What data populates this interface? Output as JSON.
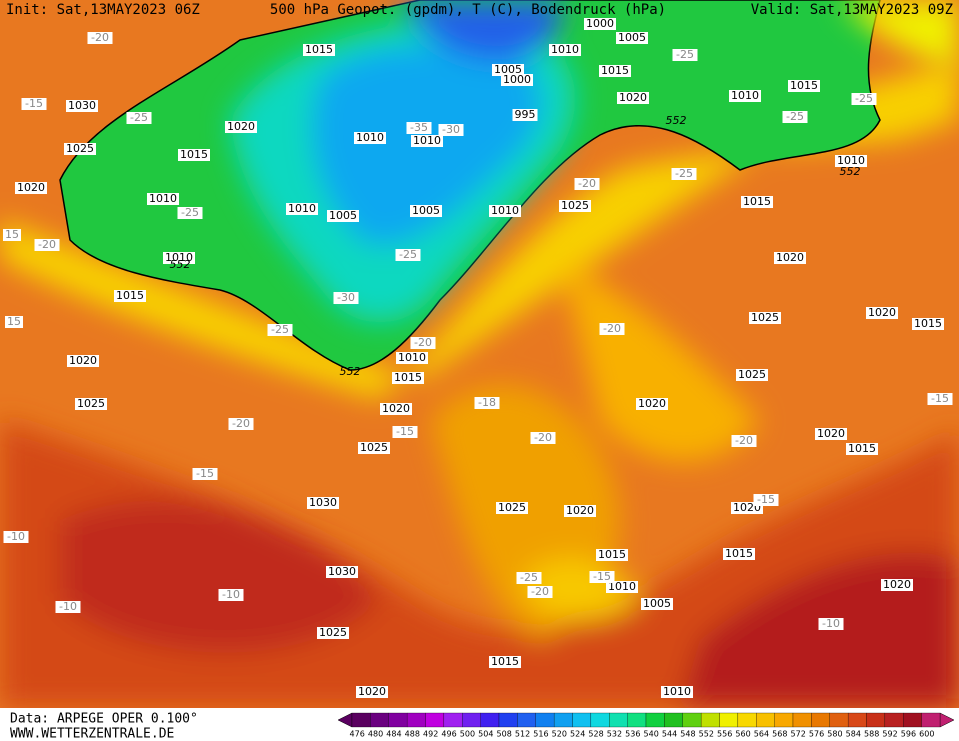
{
  "header": {
    "init": "Init: Sat,13MAY2023 06Z",
    "title": "500 hPa Geopot. (gpdm), T (C), Bodendruck (hPa)",
    "valid": "Valid: Sat,13MAY2023 09Z"
  },
  "footer": {
    "source": "Data: ARPEGE OPER 0.100°",
    "website": "WWW.WETTERZENTRALE.DE"
  },
  "colorbar": {
    "ticks": [
      476,
      480,
      484,
      488,
      492,
      496,
      500,
      504,
      508,
      512,
      516,
      520,
      524,
      528,
      532,
      536,
      540,
      544,
      548,
      552,
      556,
      560,
      564,
      568,
      572,
      576,
      580,
      584,
      588,
      592,
      596,
      600
    ],
    "colors": [
      "#5a0060",
      "#6a0080",
      "#8000a0",
      "#a000c0",
      "#c000e0",
      "#a020f0",
      "#7020f0",
      "#4020f0",
      "#2040f0",
      "#2060f0",
      "#1080f0",
      "#10a0f0",
      "#10c0f0",
      "#10d8e0",
      "#10e0b0",
      "#10e080",
      "#10d040",
      "#20c020",
      "#60d010",
      "#c0e000",
      "#f0f000",
      "#f8d800",
      "#f8c000",
      "#f8a800",
      "#f09000",
      "#e87800",
      "#e06010",
      "#d84818",
      "#c83018",
      "#b82020",
      "#a01020",
      "#c02070"
    ]
  },
  "labels": {
    "isobars": [
      "1015",
      "1030",
      "1020",
      "1025",
      "1015",
      "1020",
      "1010",
      "1010",
      "1010",
      "1010",
      "1005",
      "1005",
      "1010",
      "1010",
      "1015",
      "1005",
      "1000",
      "995",
      "1000",
      "1005",
      "1010",
      "1015",
      "1020",
      "1010",
      "1015",
      "1010",
      "1025",
      "1015",
      "1020",
      "1025",
      "1020",
      "1015",
      "1025",
      "1020",
      "1020",
      "1015",
      "1010",
      "1015",
      "1020",
      "1025",
      "1020",
      "1025",
      "1030",
      "1030",
      "1025",
      "1020",
      "1020",
      "1015",
      "1015",
      "1010",
      "1005",
      "1020",
      "1025",
      "1015",
      "1020",
      "1010"
    ],
    "temperature": [
      "-20",
      "-15",
      "-25",
      "-25",
      "-20",
      "-35",
      "-30",
      "-25",
      "-30",
      "-25",
      "-20",
      "-18",
      "-20",
      "-15",
      "-20",
      "-15",
      "-10",
      "-10",
      "-20",
      "-25",
      "-25",
      "-25",
      "-25",
      "-20",
      "-20",
      "-15",
      "-15",
      "-25",
      "-20",
      "-15",
      "-10",
      "-10",
      "15",
      "15"
    ],
    "geopotential": [
      "552",
      "552",
      "552",
      "552"
    ]
  }
}
